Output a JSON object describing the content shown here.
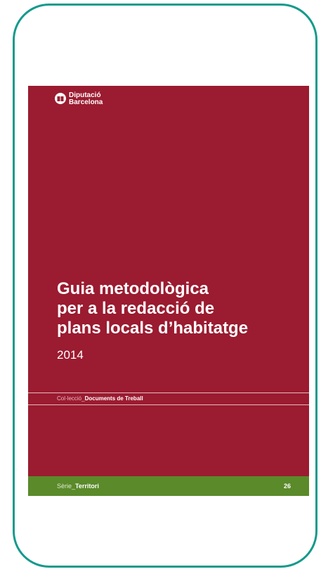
{
  "logo": {
    "lines": [
      "Diputació",
      "Barcelona"
    ]
  },
  "title": {
    "lines": [
      "Guia metodològica",
      "per a la redacció de",
      "plans locals d’habitatge"
    ]
  },
  "year": "2014",
  "collection": {
    "prefix": "Col·lecció_",
    "name": "Documents de Treball"
  },
  "series": {
    "prefix": "Sèrie_",
    "name": "Territori",
    "number": "26"
  }
}
